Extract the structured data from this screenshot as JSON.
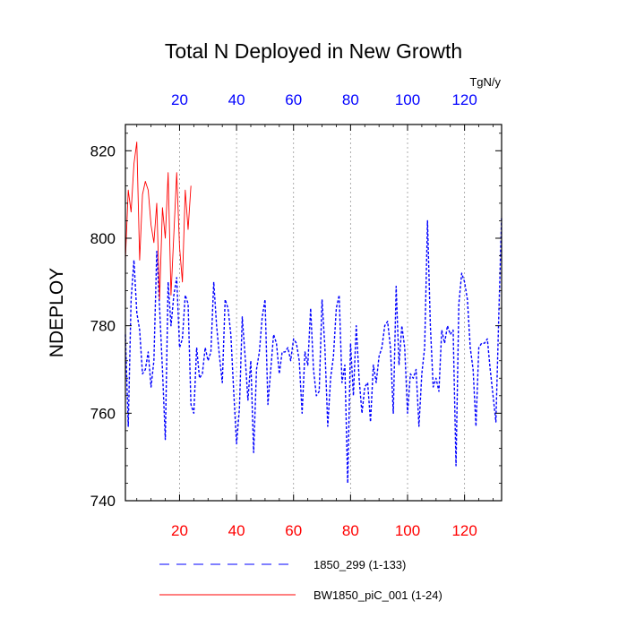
{
  "chart_data": {
    "type": "line",
    "title": "Total N Deployed in New Growth",
    "ylabel": "NDEPLOY",
    "top_units": "TgN/y",
    "xlim": [
      1,
      133
    ],
    "ylim": [
      740,
      826
    ],
    "x_ticks": [
      20,
      40,
      60,
      80,
      100,
      120
    ],
    "y_ticks": [
      740,
      760,
      780,
      800,
      820
    ],
    "x_tick_labels": [
      "20",
      "40",
      "60",
      "80",
      "100",
      "120"
    ],
    "y_tick_labels": [
      "740",
      "760",
      "780",
      "800",
      "820"
    ],
    "grid": "vertical dotted at x ticks",
    "bottom_tick_color": "#ff0000",
    "top_tick_color": "#0000ff",
    "series": [
      {
        "name": "1850_299 (1-133)",
        "color": "#0000ff",
        "style": "dashed",
        "x_start": 1,
        "values": [
          778,
          757,
          786,
          795,
          783,
          779,
          769,
          770,
          774,
          766,
          772,
          797,
          784,
          770,
          754,
          790,
          780,
          787,
          791,
          775,
          777,
          787,
          785,
          762,
          760,
          775,
          768,
          769,
          775,
          772,
          774,
          790,
          780,
          773,
          767,
          786,
          784,
          778,
          765,
          753,
          761,
          782,
          773,
          763,
          772,
          751,
          770,
          774,
          782,
          786,
          762,
          770,
          778,
          776,
          769,
          774,
          774,
          775,
          772,
          777,
          776,
          772,
          760,
          774,
          771,
          784,
          770,
          764,
          765,
          786,
          775,
          757,
          768,
          773,
          784,
          787,
          767,
          771,
          744,
          776,
          764,
          780,
          768,
          760,
          766,
          767,
          758,
          771,
          767,
          773,
          775,
          780,
          781,
          775,
          760,
          789,
          771,
          780,
          775,
          760,
          769,
          768,
          770,
          757,
          769,
          775,
          804,
          780,
          766,
          768,
          765,
          779,
          776,
          780,
          778,
          779,
          748,
          785,
          792,
          790,
          786,
          775,
          770,
          757,
          775,
          776,
          776,
          777,
          770,
          764,
          758,
          782,
          805
        ]
      },
      {
        "name": "BW1850_piC_001 (1-24)",
        "color": "#ff0000",
        "style": "solid",
        "x_start": 1,
        "values": [
          795,
          811,
          806,
          817,
          822,
          795,
          810,
          813,
          811,
          803,
          799,
          808,
          786,
          807,
          800,
          815,
          787,
          801,
          815,
          798,
          790,
          811,
          802,
          812
        ]
      }
    ]
  }
}
